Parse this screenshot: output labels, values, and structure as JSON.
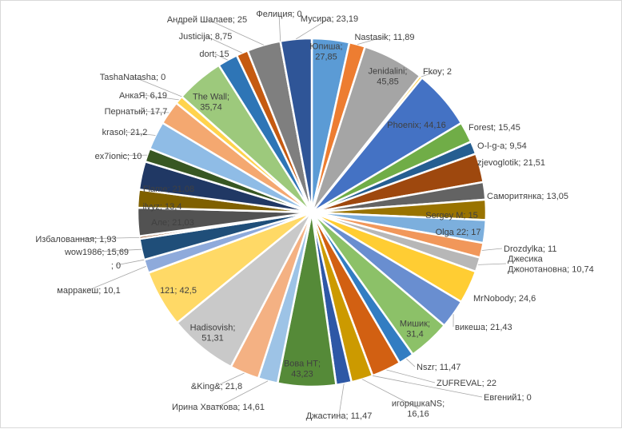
{
  "chart_data": {
    "type": "pie",
    "title": "",
    "slices": [
      {
        "label": "Юпиша",
        "value": 27.85,
        "text": "Юпиша;\n27,85",
        "color": "#5b9bd5"
      },
      {
        "label": "Nastasik",
        "value": 11.89,
        "text": "Nastasik; 11,89",
        "color": "#ed7d31"
      },
      {
        "label": "Jenidalini",
        "value": 45.85,
        "text": "Jenidalini;\n45,85",
        "color": "#a5a5a5"
      },
      {
        "label": "Fkoy",
        "value": 2,
        "text": "Fkoy; 2",
        "color": "#ffc000"
      },
      {
        "label": "Phoenix",
        "value": 44.16,
        "text": "Phoenix; 44,16",
        "color": "#4472c4"
      },
      {
        "label": "Forest",
        "value": 15.45,
        "text": "Forest; 15,45",
        "color": "#70ad47"
      },
      {
        "label": "O-l-g-a",
        "value": 9.54,
        "text": "O-l-g-a; 9,54",
        "color": "#255e91"
      },
      {
        "label": "zjevoglotik",
        "value": 21.51,
        "text": "zjevoglotik; 21,51",
        "color": "#9e480e"
      },
      {
        "label": "Саморитянка",
        "value": 13.05,
        "text": "Саморитянка; 13,05",
        "color": "#636363"
      },
      {
        "label": "Sergey M",
        "value": 15,
        "text": "Sergey M; 15",
        "color": "#997300"
      },
      {
        "label": "Olga 22",
        "value": 17,
        "text": "Olga 22; 17",
        "color": "#7cafdd"
      },
      {
        "label": "Drozdylka",
        "value": 11,
        "text": "Drozdylka; 11",
        "color": "#f1975a"
      },
      {
        "label": "Джесика Джонотановна",
        "value": 10.74,
        "text": "Джесика\nДжонотановна; 10,74",
        "color": "#b7b7b7"
      },
      {
        "label": "MrNobody",
        "value": 24.6,
        "text": "MrNobody; 24,6",
        "color": "#ffcd33"
      },
      {
        "label": "викеша",
        "value": 21.43,
        "text": "викеша; 21,43",
        "color": "#698ed0"
      },
      {
        "label": "Мишик",
        "value": 31.4,
        "text": "Мишик;\n31,4",
        "color": "#8cc168"
      },
      {
        "label": "Nszr",
        "value": 11.47,
        "text": "Nszr; 11,47",
        "color": "#327dc2"
      },
      {
        "label": "ZUFREVAL",
        "value": 22,
        "text": "ZUFREVAL; 22",
        "color": "#d26012"
      },
      {
        "label": "Евгений1",
        "value": 0,
        "text": "Евгений1; 0",
        "color": "#848484"
      },
      {
        "label": "игоряшкаNS",
        "value": 16.16,
        "text": "игоряшкаNS;\n16,16",
        "color": "#cc9a00"
      },
      {
        "label": "Джастина",
        "value": 11.47,
        "text": "Джастина; 11,47",
        "color": "#2e58a6"
      },
      {
        "label": "Вова НТ",
        "value": 43.23,
        "text": "Вова НТ;\n43,23",
        "color": "#558a38"
      },
      {
        "label": "Ирина Хваткова",
        "value": 14.61,
        "text": "Ирина Хваткова; 14,61",
        "color": "#9dc3e6"
      },
      {
        "label": "&King&",
        "value": 21.8,
        "text": "&King&; 21,8",
        "color": "#f4b183"
      },
      {
        "label": "Hadisovish",
        "value": 51.31,
        "text": "Hadisovish;\n51,31",
        "color": "#c9c9c9"
      },
      {
        "label": "121",
        "value": 42.5,
        "text": "121; 42,5",
        "color": "#ffd966"
      },
      {
        "label": "марракеш",
        "value": 10.1,
        "text": "марракеш; 10,1",
        "color": "#8eaadb"
      },
      {
        "label": "",
        "value": 0,
        "text": "; 0",
        "color": "#a9d18e"
      },
      {
        "label": "wow1986",
        "value": 15.69,
        "text": "wow1986; 15,69",
        "color": "#1f4e79"
      },
      {
        "label": "Избалованная",
        "value": 1.93,
        "text": "Избалованная; 1,93",
        "color": "#843c0c"
      },
      {
        "label": "Але",
        "value": 21.03,
        "text": "Але; 21,03",
        "color": "#525252"
      },
      {
        "label": "ilvyz",
        "value": 13.4,
        "text": "ilvyz; 13,4",
        "color": "#7f6000"
      },
      {
        "label": "Flame",
        "value": 21.08,
        "text": "Flame; 21,08",
        "color": "#203864"
      },
      {
        "label": "ex7ionic",
        "value": 10,
        "text": "ex7ionic; 10",
        "color": "#385723"
      },
      {
        "label": "krasol",
        "value": 21.2,
        "text": "krasol; 21,2",
        "color": "#8fbce6"
      },
      {
        "label": "Пернатый",
        "value": 17.7,
        "text": "Пернатый; 17,7",
        "color": "#f4a870"
      },
      {
        "label": "АнкаЯ",
        "value": 6.19,
        "text": "АнкаЯ; 6,19",
        "color": "#ffd34d"
      },
      {
        "label": "TashaNatasha",
        "value": 0,
        "text": "TashaNatasha; 0",
        "color": "#5b9bd5"
      },
      {
        "label": "The Wall",
        "value": 35.74,
        "text": "The Wall;\n35,74",
        "color": "#9dc97c"
      },
      {
        "label": "dort",
        "value": 15,
        "text": "dort; 15",
        "color": "#2e75b6"
      },
      {
        "label": "Justicija",
        "value": 8.75,
        "text": "Justicija; 8,75",
        "color": "#c55a11"
      },
      {
        "label": "Андрей Шалаев",
        "value": 25,
        "text": "Андрей Шалаев; 25",
        "color": "#7f7f7f"
      },
      {
        "label": "Фелиция",
        "value": 0,
        "text": "Фелиция; 0",
        "color": "#bf9000"
      },
      {
        "label": "Мусира",
        "value": 23.19,
        "text": "Мусира; 23,19",
        "color": "#2f5597"
      }
    ]
  }
}
